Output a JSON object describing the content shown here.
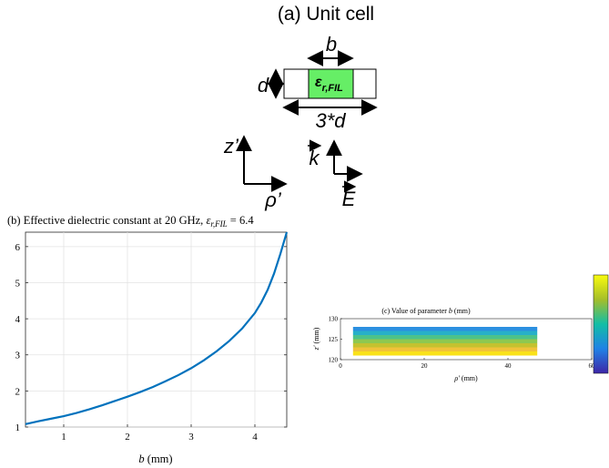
{
  "unit_cell": {
    "title": "(a) Unit cell",
    "b_label": "b",
    "d_label": "d",
    "eps_base": "ε",
    "eps_sub": "r,FIL",
    "width_label": "3*d",
    "axis_z": "z’",
    "axis_rho": "ρ’",
    "k_label": "k",
    "e_label": "E",
    "fill_color": "#66ee66"
  },
  "plot_b": {
    "title_text": "(b) Effective dielectric constant at 20 GHz, ",
    "title_math": "ε",
    "title_math_sub": "r,FIL",
    "title_math_rest": " = 6.4",
    "chart_data": {
      "type": "line",
      "xlabel_italic": "b",
      "xlabel_rest": " (mm)",
      "xlim": [
        0.4,
        4.5
      ],
      "ylim": [
        1,
        6.4
      ],
      "xticks": [
        "1",
        "2",
        "3",
        "4"
      ],
      "yticks": [
        "1",
        "2",
        "3",
        "4",
        "5",
        "6"
      ],
      "grid": true,
      "series": [
        {
          "color": "#0072bd",
          "x": [
            0.4,
            0.6,
            0.8,
            1.0,
            1.2,
            1.4,
            1.6,
            1.8,
            2.0,
            2.2,
            2.4,
            2.6,
            2.8,
            3.0,
            3.2,
            3.4,
            3.6,
            3.8,
            4.0,
            4.1,
            4.2,
            4.3,
            4.4,
            4.5
          ],
          "y": [
            1.08,
            1.16,
            1.23,
            1.3,
            1.39,
            1.49,
            1.6,
            1.72,
            1.84,
            1.97,
            2.11,
            2.27,
            2.44,
            2.63,
            2.85,
            3.1,
            3.39,
            3.73,
            4.16,
            4.45,
            4.8,
            5.25,
            5.8,
            6.4
          ]
        }
      ]
    }
  },
  "plot_c": {
    "title_prefix": "(c) Value of parameter ",
    "title_italic": "b",
    "title_suffix": " (mm)",
    "chart_data": {
      "type": "heatmap",
      "xlabel_italic": "ρ′",
      "xlabel_rest": " (mm)",
      "ylabel_italic": "z′",
      "ylabel_rest": " (mm)",
      "xlim": [
        0,
        60
      ],
      "ylim": [
        120,
        130
      ],
      "xticks": [
        "0",
        "20",
        "40",
        "60"
      ],
      "yticks": [
        "120",
        "125",
        "130"
      ],
      "rows": [
        {
          "z": [
            127,
            128
          ],
          "color": "#2b8fe0"
        },
        {
          "z": [
            126,
            127
          ],
          "color": "#27b0c8"
        },
        {
          "z": [
            125,
            126
          ],
          "color": "#4cc28a"
        },
        {
          "z": [
            124,
            125
          ],
          "color": "#8ec850"
        },
        {
          "z": [
            123,
            124
          ],
          "color": "#c4c22f"
        },
        {
          "z": [
            122,
            123
          ],
          "color": "#f0c23a"
        },
        {
          "z": [
            121,
            122
          ],
          "color": "#f9e21a"
        }
      ],
      "x_extent": [
        3,
        47
      ],
      "colorbar": {
        "min_color": "#3e26a8",
        "max_color": "#f9fb0e"
      }
    }
  }
}
